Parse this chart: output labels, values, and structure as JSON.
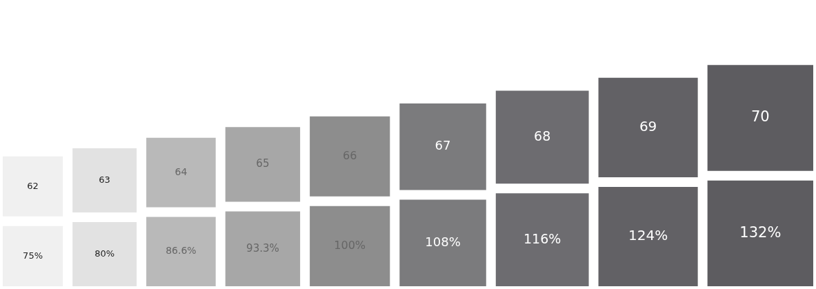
{
  "chart_data": {
    "type": "other",
    "categories": [
      "62",
      "63",
      "64",
      "65",
      "66",
      "67",
      "68",
      "69",
      "70"
    ],
    "values": [
      75,
      80,
      86.6,
      93.3,
      100,
      108,
      116,
      124,
      132
    ],
    "value_labels": [
      "75%",
      "80%",
      "86.6%",
      "93.3%",
      "100%",
      "108%",
      "116%",
      "124%",
      "132%"
    ],
    "colors": [
      "#f0f0f0",
      "#e2e2e2",
      "#b9b9b9",
      "#a7a7a7",
      "#8d8d8d",
      "#7b7b7d",
      "#6d6c70",
      "#626165",
      "#5d5c60"
    ]
  }
}
